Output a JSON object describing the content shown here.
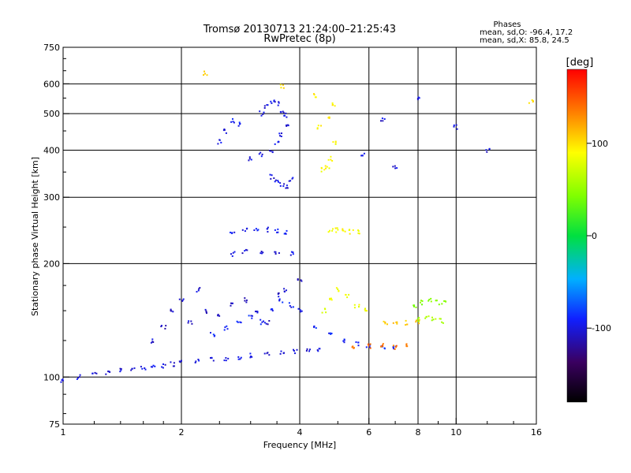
{
  "title": "Tromsø 20130713 21:24:00–21:25:43",
  "subtitle": "RwPretec (8p)",
  "phases": {
    "heading": "Phases",
    "line_o": "mean, sd,O: -96.4, 17.2",
    "line_x": "mean, sd,X: 85.8, 24.5"
  },
  "chart_data": {
    "type": "scatter",
    "title": "Tromsø 20130713 21:24:00–21:25:43",
    "subtitle": "RwPretec (8p)",
    "xlabel": "Frequency [MHz]",
    "ylabel": "Stationary phase Virtual Height [km]",
    "xscale": "log",
    "yscale": "log",
    "xlim": [
      1,
      16
    ],
    "ylim": [
      75,
      750
    ],
    "x_ticks": [
      1,
      2,
      4,
      6,
      8,
      10,
      16
    ],
    "x_tick_labels": [
      "1",
      "2",
      "4",
      "6",
      "8",
      "10",
      "16"
    ],
    "x_grid": [
      2,
      4,
      6,
      8,
      10
    ],
    "y_ticks": [
      75,
      100,
      200,
      300,
      400,
      500,
      600,
      750
    ],
    "y_tick_labels": [
      "75",
      "100",
      "200",
      "300",
      "400",
      "500",
      "600",
      "750"
    ],
    "y_grid": [
      100,
      200,
      300,
      400,
      500,
      600
    ],
    "grid": true,
    "colorbar": {
      "label": "[deg]",
      "ticks": [
        100,
        0,
        -100
      ],
      "tick_labels": [
        "100",
        "0",
        "-100"
      ],
      "range": [
        -180,
        180
      ]
    },
    "series_groups": [
      {
        "x": [
          1.0,
          1.1,
          1.2,
          1.3,
          1.4,
          1.5,
          1.6,
          1.7,
          1.8,
          1.9,
          2.0,
          2.2,
          2.4,
          2.6,
          2.8,
          3.0,
          3.3,
          3.6,
          3.9,
          4.2,
          4.5
        ],
        "y": [
          98,
          100,
          102,
          103,
          104,
          105,
          106,
          106,
          107,
          108,
          109,
          110,
          111,
          112,
          113,
          114,
          115,
          116,
          117,
          117,
          118
        ],
        "phase": -100
      },
      {
        "x": [
          2.4,
          2.6,
          2.8,
          3.0,
          3.2,
          3.4,
          3.6,
          3.8,
          4.0,
          4.4,
          4.8,
          5.2,
          5.6,
          6.0,
          6.5,
          7.0
        ],
        "y": [
          130,
          135,
          140,
          145,
          140,
          150,
          160,
          155,
          150,
          135,
          130,
          125,
          122,
          121,
          120,
          120
        ],
        "phase": -90
      },
      {
        "x": [
          1.7,
          1.8,
          1.9,
          2.0,
          2.1,
          2.2,
          2.3,
          2.5,
          2.7,
          2.9,
          3.1,
          3.3,
          3.5,
          3.7,
          4.0
        ],
        "y": [
          125,
          135,
          150,
          160,
          140,
          170,
          150,
          145,
          155,
          160,
          150,
          140,
          165,
          170,
          180
        ],
        "phase": -105
      },
      {
        "x": [
          2.7,
          2.9,
          3.1,
          3.3,
          3.5,
          3.7
        ],
        "y": [
          240,
          245,
          247,
          246,
          244,
          242
        ],
        "phase": -95
      },
      {
        "x": [
          2.7,
          2.9,
          3.2,
          3.5,
          3.8
        ],
        "y": [
          212,
          215,
          214,
          213,
          212
        ],
        "phase": -100
      },
      {
        "x": [
          3.0,
          3.2,
          3.4,
          3.5,
          3.6,
          3.7
        ],
        "y": [
          380,
          390,
          400,
          420,
          440,
          470
        ],
        "phase": -100
      },
      {
        "x": [
          3.2,
          3.3,
          3.4,
          3.5,
          3.6,
          3.7
        ],
        "y": [
          500,
          520,
          540,
          530,
          510,
          495
        ],
        "phase": -100
      },
      {
        "x": [
          3.4,
          3.5,
          3.6,
          3.7,
          3.8
        ],
        "y": [
          340,
          330,
          325,
          320,
          335
        ],
        "phase": -100
      },
      {
        "x": [
          2.5,
          2.6,
          2.7,
          2.8
        ],
        "y": [
          420,
          450,
          480,
          470
        ],
        "phase": -95
      },
      {
        "x": [
          4.6,
          4.7,
          4.8,
          4.9
        ],
        "y": [
          355,
          360,
          380,
          420
        ],
        "phase": 90
      },
      {
        "x": [
          4.5,
          4.7,
          4.9
        ],
        "y": [
          460,
          490,
          530
        ],
        "phase": 95
      },
      {
        "x": [
          4.8,
          5.0,
          5.2,
          5.4,
          5.6
        ],
        "y": [
          245,
          245,
          244,
          243,
          242
        ],
        "phase": 90
      },
      {
        "x": [
          4.6,
          4.8,
          5.0,
          5.3,
          5.6,
          5.9
        ],
        "y": [
          150,
          160,
          170,
          165,
          155,
          150
        ],
        "phase": 85
      },
      {
        "x": [
          5.5,
          6.0,
          6.5,
          7.0,
          7.5
        ],
        "y": [
          120,
          121,
          121,
          120,
          121
        ],
        "phase": 140
      },
      {
        "x": [
          7.8,
          8.2,
          8.6,
          9.0,
          9.3
        ],
        "y": [
          155,
          158,
          160,
          158,
          157
        ],
        "phase": 45
      },
      {
        "x": [
          8.0,
          8.4,
          8.8,
          9.2
        ],
        "y": [
          142,
          143,
          142,
          141
        ],
        "phase": 60
      },
      {
        "x": [
          6.6,
          7.0,
          7.5,
          8.0
        ],
        "y": [
          140,
          140,
          139,
          140
        ],
        "phase": 110
      },
      {
        "x": [
          5.8,
          6.5,
          7.0,
          8.0,
          10.0,
          12.0
        ],
        "y": [
          390,
          480,
          360,
          550,
          460,
          400
        ],
        "phase": -100
      },
      {
        "x": [
          2.3,
          3.6,
          4.4,
          15.5
        ],
        "y": [
          640,
          590,
          560,
          540
        ],
        "phase": 100
      }
    ]
  }
}
